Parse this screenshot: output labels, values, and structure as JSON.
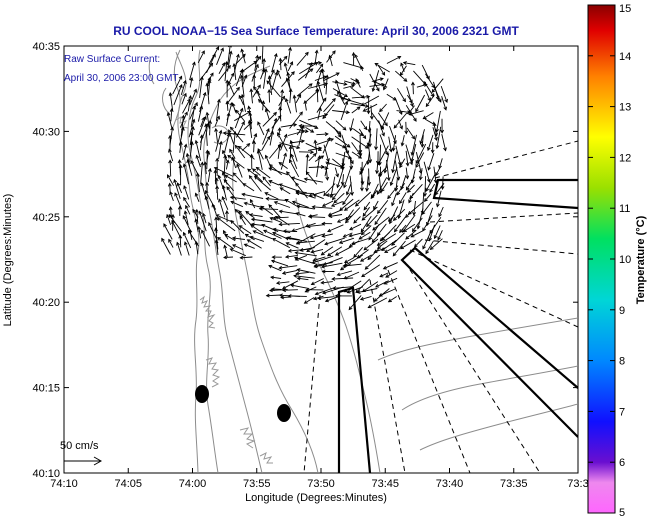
{
  "title": "RU COOL  NOAA−15  Sea Surface Temperature:  April 30, 2006 2321 GMT",
  "legend": {
    "line1": "Raw Surface Current:",
    "line2": "April 30, 2006 23:00 GMT"
  },
  "scale_label": "50 cm/s",
  "colorbar": {
    "label": "Temperature (°C)",
    "ticks": [
      "5",
      "6",
      "7",
      "8",
      "9",
      "10",
      "11",
      "12",
      "13",
      "14",
      "15"
    ],
    "min": 5,
    "max": 15
  },
  "chart_data": {
    "type": "map",
    "xlabel": "Longitude (Degrees:Minutes)",
    "ylabel": "Latitude (Degrees:Minutes)",
    "xticks": [
      "74:10",
      "74:05",
      "74:00",
      "73:55",
      "73:50",
      "73:45",
      "73:40",
      "73:35",
      "73:3"
    ],
    "yticks": [
      "40:35",
      "40:30",
      "40:25",
      "40:20",
      "40:15",
      "40:10"
    ]
  }
}
